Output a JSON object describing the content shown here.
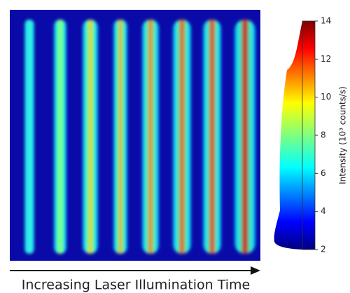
{
  "chart_data": {
    "type": "image",
    "x_annotation": "Increasing Laser Illumination Time",
    "colorbar": {
      "label": "Intensity (10³ counts/s)",
      "clim": [
        2,
        14
      ],
      "ticks": [
        2,
        4,
        6,
        8,
        10,
        12,
        14
      ],
      "colormap": "jet"
    }
  }
}
